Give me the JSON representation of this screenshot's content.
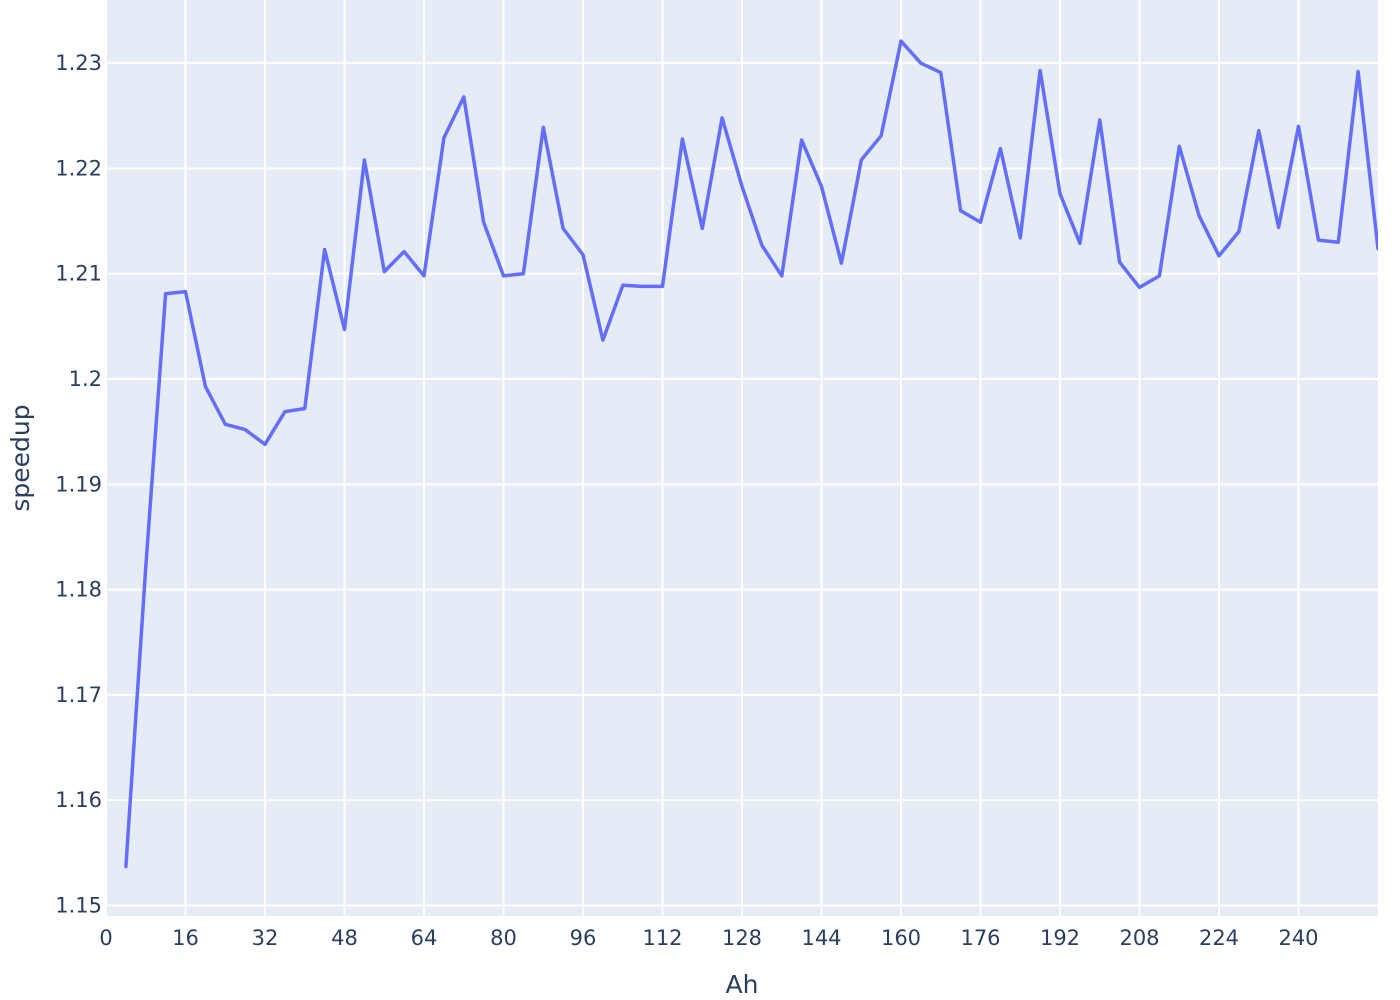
{
  "chart_data": {
    "type": "line",
    "xlabel": "Ah",
    "ylabel": "speedup",
    "xlim": [
      0,
      256
    ],
    "ylim": [
      1.149,
      1.236
    ],
    "x_ticks": [
      0,
      16,
      32,
      48,
      64,
      80,
      96,
      112,
      128,
      144,
      160,
      176,
      192,
      208,
      224,
      240
    ],
    "y_ticks": [
      1.15,
      1.16,
      1.17,
      1.18,
      1.19,
      1.2,
      1.21,
      1.22,
      1.23
    ],
    "y_tick_labels": [
      "1.15",
      "1.16",
      "1.17",
      "1.18",
      "1.19",
      "1.2",
      "1.21",
      "1.22",
      "1.23"
    ],
    "grid": true,
    "colors": {
      "plot_bg": "#e5ecf6",
      "grid": "#ffffff",
      "line": "#636efa",
      "text": "#2a3f5f"
    },
    "series": [
      {
        "x": [
          4,
          8,
          12,
          16,
          20,
          24,
          28,
          32,
          36,
          40,
          44,
          48,
          52,
          56,
          60,
          64,
          68,
          72,
          76,
          80,
          84,
          88,
          92,
          96,
          100,
          104,
          108,
          112,
          116,
          120,
          124,
          128,
          132,
          136,
          140,
          144,
          148,
          152,
          156,
          160,
          164,
          168,
          172,
          176,
          180,
          184,
          188,
          192,
          196,
          200,
          204,
          208,
          212,
          216,
          220,
          224,
          228,
          232,
          236,
          240,
          244,
          248,
          252,
          256
        ],
        "values": [
          1.1537,
          1.1822,
          1.2081,
          1.2083,
          1.1993,
          1.1957,
          1.1952,
          1.1938,
          1.1969,
          1.1972,
          1.2123,
          1.2047,
          1.2208,
          1.2102,
          1.2121,
          1.2098,
          1.2229,
          1.2268,
          1.2149,
          1.2098,
          1.21,
          1.2239,
          1.2143,
          1.2118,
          1.2037,
          1.2089,
          1.2088,
          1.2088,
          1.2228,
          1.2143,
          1.2248,
          1.2183,
          1.2127,
          1.2098,
          1.2227,
          1.2183,
          1.211,
          1.2208,
          1.2231,
          1.2321,
          1.23,
          1.2291,
          1.216,
          1.2149,
          1.2219,
          1.2134,
          1.2293,
          1.2176,
          1.2129,
          1.2246,
          1.2111,
          1.2087,
          1.2098,
          1.2221,
          1.2155,
          1.2117,
          1.214,
          1.2236,
          1.2144,
          1.224,
          1.2132,
          1.213,
          1.2292,
          1.2124
        ]
      }
    ]
  }
}
